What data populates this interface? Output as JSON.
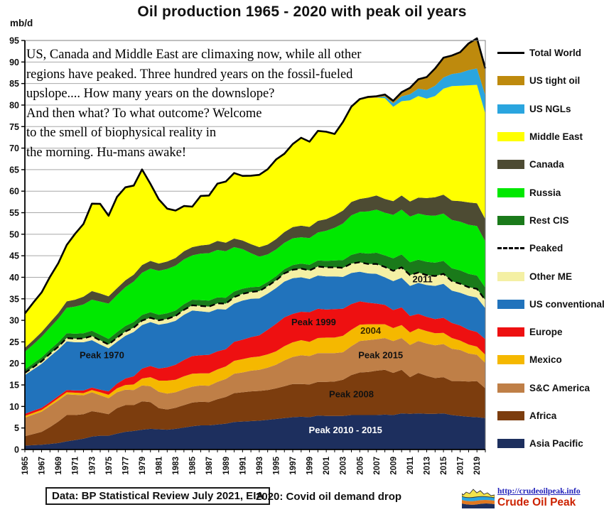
{
  "title": "Oil production 1965 - 2020 with peak oil years",
  "y_axis_unit": "mb/d",
  "annotation": {
    "lines": [
      "US, Canada and Middle East are climaxing now, while all other",
      "regions have peaked. Three hundred years on the fossil-fueled",
      "upslope.... How many years on the downslope?",
      "And then what? To what outcome? Welcome",
      "to the smell of biophysical reality in",
      "the morning. Hu-mans awake!"
    ]
  },
  "footer": {
    "data_source": "Data: BP Statistical Review July 2021, EIA",
    "covid_note": "2020: Covid oil demand drop",
    "logo_url_text": "http://crudeoilpeak.info",
    "logo_name": "Crude Oil Peak"
  },
  "legend": {
    "position": "right",
    "items": [
      {
        "label": "Total World",
        "type": "line",
        "color": "#000000"
      },
      {
        "label": "US tight oil",
        "type": "box",
        "color": "#BE8A0D"
      },
      {
        "label": "US NGLs",
        "type": "box",
        "color": "#2AA5DF"
      },
      {
        "label": "Middle East",
        "type": "box",
        "color": "#FFFF00"
      },
      {
        "label": "Canada",
        "type": "box",
        "color": "#4D4B33"
      },
      {
        "label": "Russia",
        "type": "box",
        "color": "#00E800"
      },
      {
        "label": "Rest CIS",
        "type": "box",
        "color": "#1A7A1A"
      },
      {
        "label": "Peaked",
        "type": "dash",
        "color": "#000000"
      },
      {
        "label": "Other ME",
        "type": "box",
        "color": "#F4F0A4"
      },
      {
        "label": "US conventional",
        "type": "box",
        "color": "#2173BC"
      },
      {
        "label": "Europe",
        "type": "box",
        "color": "#EE1011"
      },
      {
        "label": "Mexico",
        "type": "box",
        "color": "#F5B800"
      },
      {
        "label": "S&C America",
        "type": "box",
        "color": "#BF7F47"
      },
      {
        "label": "Africa",
        "type": "box",
        "color": "#7C3D0E"
      },
      {
        "label": "Asia Pacific",
        "type": "box",
        "color": "#1D2F5E"
      }
    ]
  },
  "chart_data": {
    "type": "area",
    "stacked": true,
    "grid": true,
    "title": "Oil production 1965 - 2020 with peak oil years",
    "ylabel": "mb/d",
    "ylim": [
      0,
      95
    ],
    "y_tick_step": 5,
    "x": [
      1965,
      1966,
      1967,
      1968,
      1969,
      1970,
      1971,
      1972,
      1973,
      1974,
      1975,
      1976,
      1977,
      1978,
      1979,
      1980,
      1981,
      1982,
      1983,
      1984,
      1985,
      1986,
      1987,
      1988,
      1989,
      1990,
      1991,
      1992,
      1993,
      1994,
      1995,
      1996,
      1997,
      1998,
      1999,
      2000,
      2001,
      2002,
      2003,
      2004,
      2005,
      2006,
      2007,
      2008,
      2009,
      2010,
      2011,
      2012,
      2013,
      2014,
      2015,
      2016,
      2017,
      2018,
      2019,
      2020
    ],
    "x_tick_labels": [
      1965,
      1967,
      1969,
      1971,
      1973,
      1975,
      1977,
      1979,
      1981,
      1983,
      1985,
      1987,
      1989,
      1991,
      1993,
      1995,
      1997,
      1999,
      2001,
      2003,
      2005,
      2007,
      2009,
      2011,
      2013,
      2015,
      2017,
      2019
    ],
    "series": [
      {
        "name": "Asia Pacific",
        "color": "#1D2F5E",
        "values": [
          0.9,
          1.0,
          1.1,
          1.3,
          1.5,
          1.9,
          2.2,
          2.5,
          3.0,
          3.2,
          3.2,
          3.7,
          4.1,
          4.3,
          4.6,
          4.8,
          4.7,
          4.6,
          4.8,
          5.1,
          5.4,
          5.6,
          5.6,
          5.8,
          6.0,
          6.4,
          6.5,
          6.6,
          6.7,
          6.9,
          7.1,
          7.3,
          7.5,
          7.6,
          7.5,
          7.9,
          7.8,
          7.8,
          7.8,
          8.0,
          8.0,
          8.0,
          8.0,
          8.1,
          8.0,
          8.4,
          8.3,
          8.4,
          8.3,
          8.3,
          8.4,
          8.0,
          7.8,
          7.6,
          7.5,
          7.3
        ]
      },
      {
        "name": "Africa",
        "color": "#7C3D0E",
        "values": [
          2.2,
          2.6,
          3.0,
          3.9,
          5.0,
          6.1,
          5.8,
          5.7,
          5.9,
          5.4,
          5.0,
          5.9,
          6.2,
          6.0,
          6.6,
          6.2,
          4.9,
          4.7,
          4.9,
          5.2,
          5.5,
          5.5,
          5.4,
          5.9,
          6.2,
          6.7,
          6.8,
          6.9,
          6.9,
          6.9,
          7.1,
          7.4,
          7.7,
          7.6,
          7.6,
          7.8,
          7.9,
          8.0,
          8.4,
          9.3,
          9.9,
          10.0,
          10.3,
          10.4,
          9.8,
          10.1,
          8.5,
          9.4,
          8.8,
          8.3,
          8.4,
          7.9,
          8.1,
          8.2,
          8.4,
          6.9
        ]
      },
      {
        "name": "S&C America",
        "color": "#BF7F47",
        "values": [
          4.3,
          4.5,
          4.7,
          4.9,
          4.9,
          4.8,
          4.7,
          4.4,
          4.4,
          4.0,
          3.7,
          3.7,
          3.6,
          3.5,
          3.7,
          3.7,
          3.8,
          3.7,
          3.6,
          3.7,
          3.7,
          3.8,
          3.8,
          4.0,
          4.2,
          4.5,
          4.6,
          4.8,
          4.9,
          5.2,
          5.5,
          6.0,
          6.3,
          6.7,
          6.6,
          6.7,
          6.7,
          6.6,
          6.4,
          6.7,
          7.3,
          7.4,
          7.3,
          7.4,
          7.4,
          7.4,
          7.5,
          7.4,
          7.5,
          7.6,
          7.7,
          7.5,
          7.2,
          6.5,
          6.1,
          5.9
        ]
      },
      {
        "name": "Mexico",
        "color": "#F5B800",
        "values": [
          0.4,
          0.4,
          0.4,
          0.4,
          0.5,
          0.5,
          0.5,
          0.5,
          0.5,
          0.7,
          0.8,
          0.9,
          1.1,
          1.3,
          1.6,
          2.1,
          2.6,
          3.0,
          2.9,
          3.0,
          3.0,
          2.8,
          2.9,
          2.9,
          2.9,
          3.0,
          3.1,
          3.1,
          3.1,
          3.1,
          3.1,
          3.3,
          3.4,
          3.5,
          3.3,
          3.5,
          3.6,
          3.6,
          3.8,
          3.8,
          3.8,
          3.7,
          3.5,
          3.2,
          3.0,
          3.0,
          2.9,
          2.9,
          2.9,
          2.8,
          2.6,
          2.5,
          2.2,
          2.1,
          1.9,
          1.9
        ]
      },
      {
        "name": "Europe",
        "color": "#EE1011",
        "values": [
          0.5,
          0.5,
          0.5,
          0.5,
          0.5,
          0.5,
          0.5,
          0.6,
          0.6,
          0.6,
          0.8,
          1.1,
          1.5,
          1.9,
          2.3,
          2.6,
          2.8,
          3.1,
          3.5,
          3.8,
          4.1,
          4.2,
          4.3,
          4.2,
          4.0,
          4.4,
          4.5,
          4.7,
          4.9,
          5.7,
          6.4,
          6.7,
          6.6,
          6.6,
          6.9,
          6.8,
          6.5,
          6.6,
          6.3,
          6.0,
          5.4,
          5.0,
          4.8,
          4.5,
          4.2,
          4.1,
          3.8,
          3.4,
          3.3,
          3.3,
          3.5,
          3.5,
          3.5,
          3.4,
          3.4,
          3.6
        ]
      },
      {
        "name": "US conventional",
        "color": "#2173BC",
        "values": [
          9.0,
          9.6,
          10.2,
          10.6,
          10.8,
          11.3,
          11.2,
          11.2,
          11.0,
          10.5,
          10.0,
          9.7,
          9.9,
          10.3,
          10.1,
          10.2,
          10.2,
          10.2,
          10.2,
          10.5,
          10.6,
          10.2,
          9.9,
          9.8,
          9.2,
          8.9,
          9.1,
          8.9,
          8.6,
          8.4,
          8.3,
          8.3,
          8.3,
          8.0,
          7.7,
          7.7,
          7.7,
          7.6,
          7.4,
          7.2,
          6.9,
          6.8,
          6.9,
          6.4,
          6.7,
          6.9,
          7.0,
          7.2,
          7.4,
          7.7,
          7.9,
          7.5,
          7.6,
          7.9,
          8.0,
          7.2
        ]
      },
      {
        "name": "Other ME",
        "color": "#F4F0A4",
        "values": [
          0.5,
          0.55,
          0.6,
          0.65,
          0.7,
          0.8,
          0.85,
          0.9,
          0.95,
          0.95,
          0.9,
          0.95,
          1.0,
          1.0,
          1.05,
          1.0,
          1.0,
          1.05,
          1.1,
          1.15,
          1.2,
          1.25,
          1.3,
          1.35,
          1.4,
          1.5,
          1.55,
          1.6,
          1.7,
          1.75,
          1.8,
          1.9,
          1.95,
          2.0,
          2.0,
          2.1,
          2.1,
          2.1,
          2.1,
          2.2,
          2.2,
          2.2,
          2.3,
          2.4,
          2.4,
          2.4,
          2.5,
          2.4,
          2.3,
          2.3,
          2.3,
          2.2,
          2.1,
          2.0,
          2.0,
          1.9
        ]
      },
      {
        "name": "Rest CIS",
        "color": "#1A7A1A",
        "values": [
          0.8,
          0.85,
          0.9,
          0.95,
          1.0,
          1.1,
          1.15,
          1.2,
          1.25,
          1.3,
          1.3,
          1.3,
          1.3,
          1.3,
          1.3,
          1.3,
          1.3,
          1.3,
          1.3,
          1.3,
          1.3,
          1.35,
          1.4,
          1.4,
          1.35,
          1.3,
          1.2,
          1.1,
          1.0,
          0.95,
          0.95,
          1.0,
          1.1,
          1.2,
          1.3,
          1.4,
          1.5,
          1.6,
          1.8,
          2.0,
          2.2,
          2.4,
          2.6,
          2.7,
          2.9,
          3.0,
          3.0,
          3.0,
          3.1,
          3.1,
          3.0,
          3.0,
          3.1,
          3.1,
          3.1,
          2.9
        ]
      },
      {
        "name": "Russia",
        "color": "#00E800",
        "values": [
          4.1,
          4.4,
          4.8,
          5.1,
          5.5,
          5.9,
          6.3,
          6.7,
          7.2,
          7.7,
          8.2,
          8.6,
          9.0,
          9.4,
          9.8,
          10.1,
          10.2,
          10.3,
          10.4,
          10.4,
          10.3,
          10.8,
          11.0,
          11.0,
          10.8,
          10.3,
          9.2,
          7.9,
          7.0,
          6.4,
          6.2,
          6.1,
          6.2,
          6.1,
          6.2,
          6.5,
          7.0,
          7.6,
          8.5,
          9.2,
          9.5,
          9.8,
          10.0,
          9.9,
          10.1,
          10.4,
          10.6,
          10.7,
          10.8,
          10.9,
          11.0,
          11.2,
          11.3,
          11.4,
          11.5,
          10.7
        ]
      },
      {
        "name": "Canada",
        "color": "#4D4B33",
        "values": [
          0.9,
          1.0,
          1.1,
          1.2,
          1.3,
          1.5,
          1.6,
          1.8,
          2.0,
          1.9,
          1.7,
          1.6,
          1.6,
          1.6,
          1.8,
          1.8,
          1.7,
          1.7,
          1.8,
          1.9,
          1.9,
          1.9,
          2.0,
          2.1,
          2.0,
          2.0,
          2.0,
          2.1,
          2.2,
          2.3,
          2.4,
          2.5,
          2.6,
          2.7,
          2.6,
          2.7,
          2.7,
          2.9,
          3.0,
          3.1,
          3.0,
          3.2,
          3.3,
          3.2,
          3.2,
          3.3,
          3.5,
          3.7,
          4.0,
          4.3,
          4.4,
          4.5,
          4.8,
          5.2,
          5.3,
          5.2
        ]
      },
      {
        "name": "Middle East",
        "color": "#FFFF00",
        "values": [
          8.0,
          8.7,
          9.2,
          10.6,
          11.6,
          13.1,
          15.3,
          16.9,
          20.3,
          20.8,
          18.7,
          21.2,
          21.6,
          20.7,
          22.2,
          17.9,
          14.9,
          12.3,
          11.0,
          10.5,
          9.4,
          11.5,
          11.4,
          13.3,
          14.2,
          15.2,
          15.0,
          15.9,
          16.8,
          17.5,
          18.5,
          18.2,
          19.3,
          20.4,
          19.8,
          20.9,
          20.3,
          18.9,
          20.5,
          22.0,
          23.0,
          23.1,
          22.7,
          23.4,
          21.9,
          21.9,
          23.5,
          23.6,
          23.1,
          23.5,
          24.6,
          26.6,
          26.8,
          27.2,
          27.5,
          24.5
        ]
      },
      {
        "name": "US NGLs",
        "color": "#2AA5DF",
        "values": [
          0,
          0,
          0,
          0,
          0,
          0,
          0,
          0,
          0,
          0,
          0,
          0,
          0,
          0,
          0,
          0,
          0,
          0,
          0,
          0,
          0,
          0,
          0,
          0,
          0,
          0,
          0,
          0,
          0,
          0,
          0,
          0,
          0,
          0,
          0,
          0,
          0,
          0,
          0,
          0,
          0,
          0,
          0,
          0.4,
          0.8,
          1.1,
          1.4,
          1.7,
          2.0,
          2.4,
          2.6,
          2.8,
          3.0,
          3.5,
          3.8,
          4.2
        ]
      },
      {
        "name": "US tight oil",
        "color": "#BE8A0D",
        "values": [
          0,
          0,
          0,
          0,
          0,
          0,
          0,
          0,
          0,
          0,
          0,
          0,
          0,
          0,
          0,
          0,
          0,
          0,
          0,
          0,
          0,
          0,
          0,
          0,
          0,
          0,
          0,
          0,
          0,
          0,
          0,
          0,
          0,
          0,
          0,
          0,
          0,
          0,
          0.1,
          0.15,
          0.2,
          0.3,
          0.35,
          0.45,
          0.6,
          1.0,
          1.5,
          2.2,
          3.0,
          4.0,
          4.6,
          4.3,
          4.8,
          6.2,
          7.0,
          6.3
        ]
      }
    ],
    "total_line": {
      "name": "Total World",
      "color": "#000000"
    },
    "peaked_line": {
      "name": "Peaked",
      "color": "#000000",
      "after_series": "Other ME"
    },
    "annotations": [
      {
        "text": "Peak 1970",
        "year": 1974.2,
        "value": 21.2,
        "color": "#111111"
      },
      {
        "text": "Peak 1999",
        "year": 1999.5,
        "value": 28.9,
        "color": "#111111"
      },
      {
        "text": "2004",
        "year": 2006.3,
        "value": 26.9,
        "color": "#3a2a00"
      },
      {
        "text": "Peak 2015",
        "year": 2007.5,
        "value": 21.2,
        "color": "#111111"
      },
      {
        "text": "Peak 2008",
        "year": 2004.0,
        "value": 12.1,
        "color": "#111111"
      },
      {
        "text": "Peak 2010 - 2015",
        "year": 2003.3,
        "value": 3.8,
        "color": "#ffffff"
      },
      {
        "text": "2011",
        "year": 2012.5,
        "value": 38.8,
        "color": "#111111"
      }
    ]
  }
}
